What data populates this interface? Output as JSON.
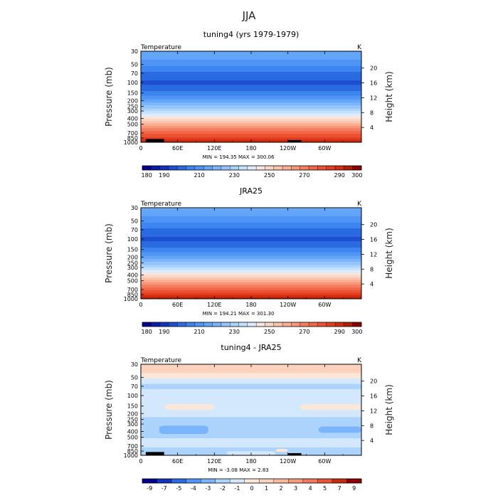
{
  "suptitle": "JJA",
  "chart_data": [
    {
      "type": "heatmap",
      "title": "tuning4 (yrs 1979-1979)",
      "left_label": "Temperature",
      "unit": "K",
      "ylabel": "Pressure (mb)",
      "ylabel_right": "Height (km)",
      "x_ticks": [
        "0",
        "60E",
        "120E",
        "180",
        "120W",
        "60W"
      ],
      "x_tick_positions": [
        0,
        60,
        120,
        180,
        240,
        300
      ],
      "xlim": [
        0,
        360
      ],
      "y_ticks": [
        "30",
        "50",
        "70",
        "100",
        "150",
        "200",
        "250",
        "300",
        "400",
        "500",
        "700",
        "850",
        "1000"
      ],
      "y_tick_values": [
        30,
        50,
        70,
        100,
        150,
        200,
        250,
        300,
        400,
        500,
        700,
        850,
        1000
      ],
      "ylim": [
        1000,
        30
      ],
      "yscale": "log",
      "height_ticks": [
        20,
        16,
        12,
        8,
        4
      ],
      "stats": "MIN = 194.35   MAX = 300.06",
      "levels": [
        180,
        185,
        190,
        195,
        200,
        205,
        210,
        215,
        220,
        225,
        230,
        235,
        240,
        245,
        250,
        255,
        260,
        265,
        270,
        275,
        280,
        285,
        290,
        295,
        300
      ],
      "colorbar_labels": [
        "180",
        "190",
        "210",
        "230",
        "250",
        "270",
        "290",
        "300"
      ],
      "colorbar_label_values": [
        180,
        190,
        210,
        230,
        250,
        270,
        290,
        300
      ],
      "profile": {
        "pressure": [
          30,
          40,
          50,
          60,
          70,
          85,
          100,
          120,
          150,
          175,
          200,
          250,
          300,
          350,
          400,
          450,
          500,
          600,
          700,
          850,
          925,
          1000
        ],
        "temperature": [
          220,
          216,
          211,
          207,
          204,
          201,
          199,
          201,
          207,
          212,
          217,
          226,
          235,
          243,
          250,
          256,
          262,
          271,
          278,
          287,
          292,
          297
        ]
      },
      "mountains": [
        {
          "lon_start": 8,
          "lon_end": 38,
          "top_pressure": 880
        },
        {
          "lon_start": 240,
          "lon_end": 262,
          "top_pressure": 920
        }
      ],
      "colors": [
        "#00008b",
        "#0a1da6",
        "#1433bd",
        "#1f4fd1",
        "#2b6ae0",
        "#3c84f0",
        "#4f95f5",
        "#63a5f8",
        "#7ab4fa",
        "#94c4fb",
        "#acd3fc",
        "#c5e1fd",
        "#dcecfd",
        "#f7e6dd",
        "#fcd6c4",
        "#fcc3ab",
        "#fbad92",
        "#f89677",
        "#f47f5f",
        "#f06848",
        "#ea5233",
        "#e23e20",
        "#d12c10",
        "#b41d06",
        "#8b0000"
      ]
    },
    {
      "type": "heatmap",
      "title": "JRA25",
      "left_label": "Temperature",
      "unit": "K",
      "ylabel": "Pressure (mb)",
      "ylabel_right": "Height (km)",
      "x_ticks": [
        "0",
        "60E",
        "120E",
        "180",
        "120W",
        "60W"
      ],
      "x_tick_positions": [
        0,
        60,
        120,
        180,
        240,
        300
      ],
      "xlim": [
        0,
        360
      ],
      "y_ticks": [
        "30",
        "50",
        "70",
        "100",
        "150",
        "200",
        "250",
        "300",
        "400",
        "500",
        "700",
        "850",
        "1000"
      ],
      "y_tick_values": [
        30,
        50,
        70,
        100,
        150,
        200,
        250,
        300,
        400,
        500,
        700,
        850,
        1000
      ],
      "ylim": [
        1000,
        30
      ],
      "yscale": "log",
      "height_ticks": [
        20,
        16,
        12,
        8,
        4
      ],
      "stats": "MIN = 194.21   MAX = 301.30",
      "levels": [
        180,
        185,
        190,
        195,
        200,
        205,
        210,
        215,
        220,
        225,
        230,
        235,
        240,
        245,
        250,
        255,
        260,
        265,
        270,
        275,
        280,
        285,
        290,
        295,
        300
      ],
      "colorbar_labels": [
        "180",
        "190",
        "210",
        "230",
        "250",
        "270",
        "290",
        "300"
      ],
      "colorbar_label_values": [
        180,
        190,
        210,
        230,
        250,
        270,
        290,
        300
      ],
      "profile": {
        "pressure": [
          30,
          40,
          50,
          60,
          70,
          85,
          100,
          120,
          150,
          175,
          200,
          250,
          300,
          350,
          400,
          450,
          500,
          600,
          700,
          850,
          925,
          1000
        ],
        "temperature": [
          221,
          216,
          211,
          207,
          204,
          201,
          199,
          201,
          207,
          212,
          217,
          226,
          235,
          243,
          250,
          256,
          262,
          271,
          279,
          288,
          293,
          298
        ]
      },
      "mountains": [],
      "colors": [
        "#00008b",
        "#0a1da6",
        "#1433bd",
        "#1f4fd1",
        "#2b6ae0",
        "#3c84f0",
        "#4f95f5",
        "#63a5f8",
        "#7ab4fa",
        "#94c4fb",
        "#acd3fc",
        "#c5e1fd",
        "#dcecfd",
        "#f7e6dd",
        "#fcd6c4",
        "#fcc3ab",
        "#fbad92",
        "#f89677",
        "#f47f5f",
        "#f06848",
        "#ea5233",
        "#e23e20",
        "#d12c10",
        "#b41d06",
        "#8b0000"
      ]
    },
    {
      "type": "heatmap",
      "title": "tuning4 - JRA25",
      "left_label": "Temperature",
      "unit": "K",
      "ylabel": "Pressure (mb)",
      "ylabel_right": "Height (km)",
      "x_ticks": [
        "0",
        "60E",
        "120E",
        "180",
        "120W",
        "60W"
      ],
      "x_tick_positions": [
        0,
        60,
        120,
        180,
        240,
        300
      ],
      "xlim": [
        0,
        360
      ],
      "y_ticks": [
        "30",
        "50",
        "70",
        "100",
        "150",
        "200",
        "250",
        "300",
        "400",
        "500",
        "700",
        "850",
        "1000"
      ],
      "y_tick_values": [
        30,
        50,
        70,
        100,
        150,
        200,
        250,
        300,
        400,
        500,
        700,
        850,
        1000
      ],
      "ylim": [
        1000,
        30
      ],
      "yscale": "log",
      "height_ticks": [
        20,
        16,
        12,
        8,
        4
      ],
      "stats": "MIN = -3.08   MAX = 2.83",
      "levels": [
        -9,
        -7,
        -5,
        -4,
        -3,
        -2,
        -1,
        0,
        1,
        2,
        3,
        4,
        5,
        7,
        9
      ],
      "colorbar_labels": [
        "-9",
        "-7",
        "-5",
        "-4",
        "-3",
        "-2",
        "-1",
        "0",
        "1",
        "2",
        "3",
        "4",
        "5",
        "7",
        "9"
      ],
      "colorbar_label_values": [
        -9,
        -7,
        -5,
        -4,
        -3,
        -2,
        -1,
        0,
        1,
        2,
        3,
        4,
        5,
        7,
        9
      ],
      "diff_bands": [
        {
          "p_top": 30,
          "p_bottom": 42,
          "value": 1.5
        },
        {
          "p_top": 42,
          "p_bottom": 52,
          "value": 0.5
        },
        {
          "p_top": 52,
          "p_bottom": 64,
          "value": -0.5
        },
        {
          "p_top": 64,
          "p_bottom": 78,
          "value": -1.5
        },
        {
          "p_top": 78,
          "p_bottom": 230,
          "value": -0.5
        },
        {
          "p_top": 230,
          "p_bottom": 520,
          "value": -1.5
        },
        {
          "p_top": 520,
          "p_bottom": 740,
          "value": -0.5
        },
        {
          "p_top": 740,
          "p_bottom": 1000,
          "value": -1.5
        }
      ],
      "diff_patches": [
        {
          "lon_start": 40,
          "lon_end": 120,
          "p_top": 140,
          "p_bottom": 175,
          "value": 0.5
        },
        {
          "lon_start": 260,
          "lon_end": 360,
          "p_top": 140,
          "p_bottom": 175,
          "value": 0.5
        },
        {
          "lon_start": 30,
          "lon_end": 110,
          "p_top": 320,
          "p_bottom": 440,
          "value": -2.5
        },
        {
          "lon_start": 290,
          "lon_end": 360,
          "p_top": 330,
          "p_bottom": 420,
          "value": -2.5
        },
        {
          "lon_start": 140,
          "lon_end": 220,
          "p_top": 850,
          "p_bottom": 1000,
          "value": -0.5
        },
        {
          "lon_start": 220,
          "lon_end": 240,
          "p_top": 780,
          "p_bottom": 880,
          "value": 0.5
        }
      ],
      "mountains": [
        {
          "lon_start": 8,
          "lon_end": 38,
          "top_pressure": 880
        },
        {
          "lon_start": 240,
          "lon_end": 262,
          "top_pressure": 920
        }
      ],
      "colors": [
        "#00008b",
        "#1433bd",
        "#2b6ae0",
        "#4f95f5",
        "#7ab4fa",
        "#acd3fc",
        "#d4e8fd",
        "#fbe6da",
        "#fbd2bd",
        "#f9b79c",
        "#f69b7c",
        "#f1785a",
        "#e75434",
        "#c42c10",
        "#8b0000"
      ]
    }
  ]
}
